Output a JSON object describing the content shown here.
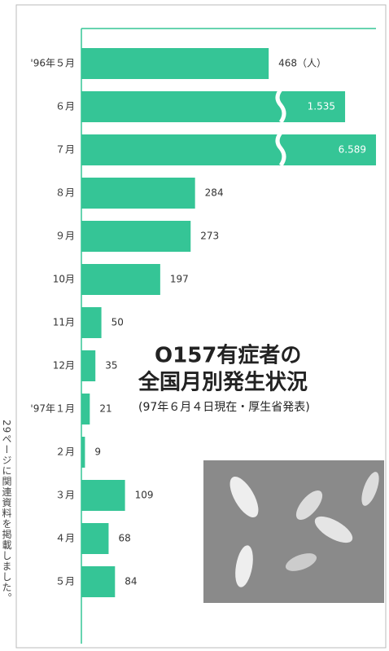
{
  "chart_data": {
    "type": "bar",
    "orientation": "horizontal",
    "title": "O157有症者の",
    "subtitle": "全国月別発生状況",
    "source": "(97年６月４日現在・厚生省発表)",
    "side_note": "29ページに関連資料を掲載しました。",
    "categories": [
      "'96年５月",
      "６月",
      "７月",
      "８月",
      "９月",
      "10月",
      "11月",
      "12月",
      "'97年１月",
      "２月",
      "３月",
      "４月",
      "５月"
    ],
    "values": [
      468,
      1535,
      6589,
      284,
      273,
      197,
      50,
      35,
      21,
      9,
      109,
      68,
      84
    ],
    "value_labels": [
      "468（人）",
      "1.535",
      "6.589",
      "284",
      "273",
      "197",
      "50",
      "35",
      "21",
      "9",
      "109",
      "68",
      "84"
    ],
    "color": "#35c596",
    "xlim": [
      0,
      610
    ]
  }
}
